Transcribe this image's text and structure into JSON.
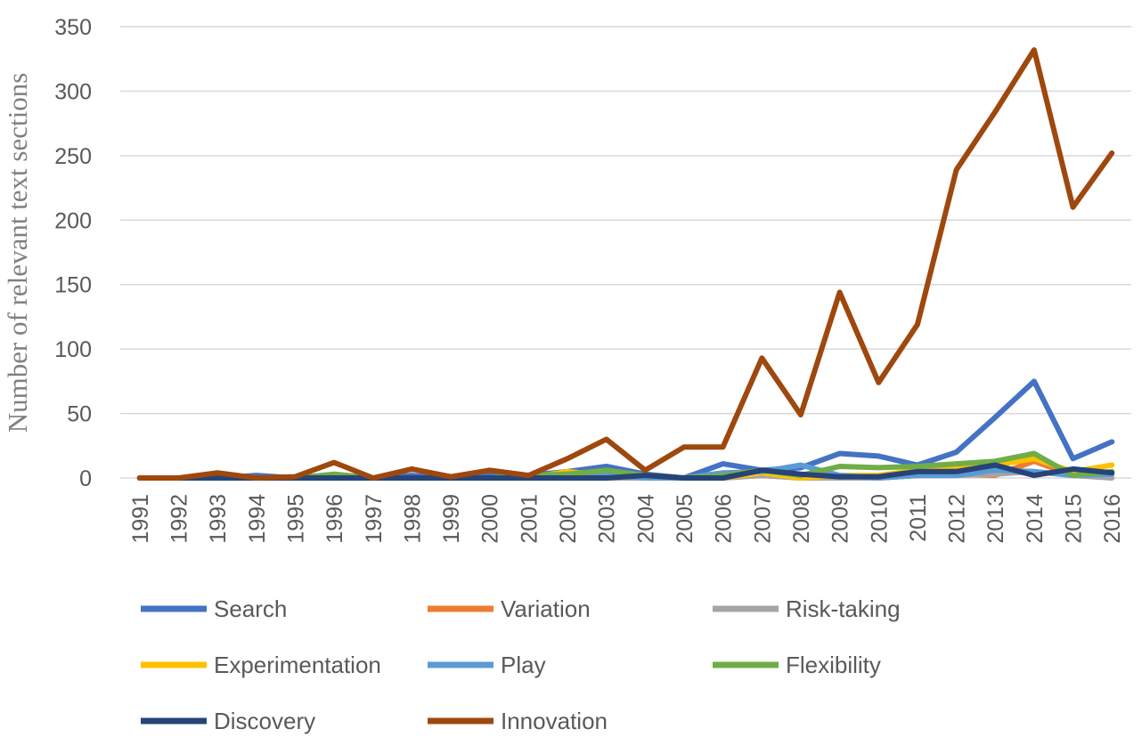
{
  "chart_data": {
    "type": "line",
    "title": "",
    "xlabel": "",
    "ylabel": "Number of relevant text sections",
    "ylim": [
      0,
      350
    ],
    "yticks": [
      0,
      50,
      100,
      150,
      200,
      250,
      300,
      350
    ],
    "grid": true,
    "legend_position": "bottom",
    "x": [
      "1991",
      "1992",
      "1993",
      "1994",
      "1995",
      "1996",
      "1997",
      "1998",
      "1999",
      "2000",
      "2001",
      "2002",
      "2003",
      "2004",
      "2005",
      "2006",
      "2007",
      "2008",
      "2009",
      "2010",
      "2011",
      "2012",
      "2013",
      "2014",
      "2015",
      "2016"
    ],
    "series": [
      {
        "name": "Search",
        "color": "#4472c4",
        "values": [
          0,
          0,
          0,
          2,
          0,
          2,
          0,
          2,
          0,
          2,
          2,
          5,
          9,
          3,
          0,
          11,
          6,
          8,
          19,
          17,
          10,
          20,
          47,
          75,
          15,
          28
        ]
      },
      {
        "name": "Variation",
        "color": "#ed7d31",
        "values": [
          0,
          0,
          0,
          0,
          0,
          0,
          0,
          0,
          0,
          0,
          0,
          0,
          0,
          0,
          0,
          0,
          2,
          0,
          0,
          0,
          2,
          3,
          2,
          13,
          2,
          3
        ]
      },
      {
        "name": "Risk-taking",
        "color": "#a5a5a5",
        "values": [
          0,
          0,
          0,
          0,
          0,
          0,
          0,
          0,
          0,
          0,
          0,
          0,
          0,
          0,
          0,
          0,
          2,
          0,
          0,
          0,
          2,
          2,
          3,
          5,
          2,
          0
        ]
      },
      {
        "name": "Experimentation",
        "color": "#ffc000",
        "values": [
          0,
          0,
          0,
          0,
          0,
          0,
          0,
          0,
          0,
          0,
          0,
          5,
          2,
          0,
          0,
          0,
          4,
          0,
          2,
          2,
          6,
          8,
          10,
          15,
          5,
          10
        ]
      },
      {
        "name": "Play",
        "color": "#5b9bd5",
        "values": [
          0,
          0,
          0,
          0,
          0,
          0,
          0,
          0,
          0,
          0,
          0,
          2,
          2,
          0,
          0,
          4,
          5,
          10,
          2,
          0,
          2,
          2,
          6,
          5,
          2,
          3
        ]
      },
      {
        "name": "Flexibility",
        "color": "#70ad47",
        "values": [
          0,
          0,
          0,
          0,
          0,
          3,
          0,
          0,
          0,
          0,
          2,
          3,
          6,
          2,
          0,
          2,
          6,
          2,
          9,
          8,
          9,
          11,
          13,
          19,
          2,
          5
        ]
      },
      {
        "name": "Discovery",
        "color": "#264478",
        "values": [
          0,
          0,
          0,
          0,
          0,
          0,
          0,
          0,
          0,
          0,
          0,
          0,
          0,
          2,
          0,
          0,
          6,
          3,
          1,
          1,
          5,
          5,
          10,
          2,
          7,
          4
        ]
      },
      {
        "name": "Innovation",
        "color": "#9e480e",
        "values": [
          0,
          0,
          4,
          0,
          1,
          12,
          0,
          7,
          1,
          6,
          2,
          15,
          30,
          6,
          24,
          24,
          93,
          49,
          144,
          74,
          119,
          239,
          284,
          332,
          210,
          252
        ]
      }
    ]
  }
}
